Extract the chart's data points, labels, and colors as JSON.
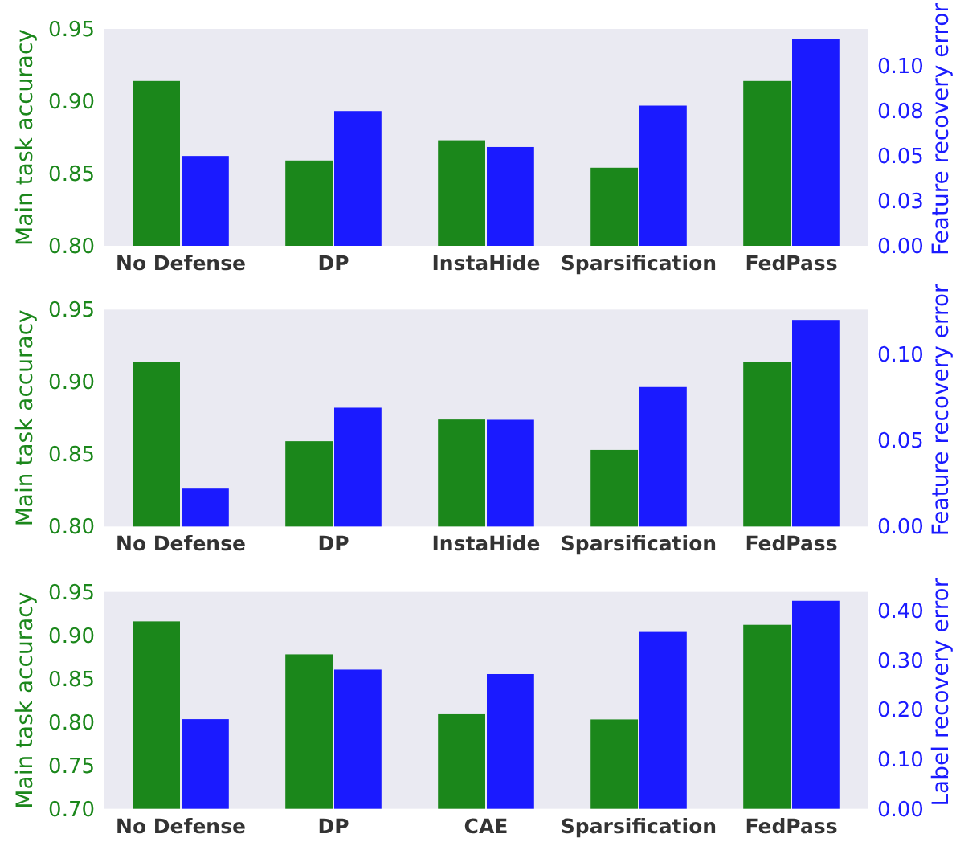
{
  "chart_data": [
    {
      "type": "bar",
      "ylabel": "Main task accuracy",
      "y2label": "Feature recovery error",
      "categories": [
        "No Defense",
        "DP",
        "InstaHide",
        "Sparsification",
        "FedPass"
      ],
      "series": [
        {
          "color": "#1b871b",
          "values": [
            0.914,
            0.859,
            0.873,
            0.854,
            0.914
          ]
        },
        {
          "color": "#1a1aff",
          "axis": "y2",
          "values": [
            0.05,
            0.075,
            0.055,
            0.078,
            0.115
          ]
        }
      ],
      "ylim": [
        0.8,
        0.95
      ],
      "yticks": [
        {
          "value": 0.8,
          "label": "0.80"
        },
        {
          "value": 0.85,
          "label": "0.85"
        },
        {
          "value": 0.9,
          "label": "0.90"
        },
        {
          "value": 0.95,
          "label": "0.95"
        }
      ],
      "y2lim": [
        0,
        0.1207
      ],
      "y2ticks": [
        {
          "value": 0,
          "label": "0.00"
        },
        {
          "value": 0.025,
          "label": "0.03"
        },
        {
          "value": 0.05,
          "label": "0.05"
        },
        {
          "value": 0.075,
          "label": "0.08"
        },
        {
          "value": 0.1,
          "label": "0.10"
        }
      ],
      "grid": false
    },
    {
      "type": "bar",
      "ylabel": "Main task accuracy",
      "y2label": "Feature recovery error",
      "categories": [
        "No Defense",
        "DP",
        "InstaHide",
        "Sparsification",
        "FedPass"
      ],
      "series": [
        {
          "color": "#1b871b",
          "values": [
            0.914,
            0.859,
            0.874,
            0.853,
            0.914
          ]
        },
        {
          "color": "#1a1aff",
          "axis": "y2",
          "values": [
            0.022,
            0.069,
            0.062,
            0.081,
            0.12
          ]
        }
      ],
      "ylim": [
        0.8,
        0.95
      ],
      "yticks": [
        {
          "value": 0.8,
          "label": "0.80"
        },
        {
          "value": 0.85,
          "label": "0.85"
        },
        {
          "value": 0.9,
          "label": "0.90"
        },
        {
          "value": 0.95,
          "label": "0.95"
        }
      ],
      "y2lim": [
        0,
        0.126
      ],
      "y2ticks": [
        {
          "value": 0,
          "label": "0.00"
        },
        {
          "value": 0.05,
          "label": "0.05"
        },
        {
          "value": 0.1,
          "label": "0.10"
        }
      ],
      "grid": false
    },
    {
      "type": "bar",
      "ylabel": "Main task accuracy",
      "y2label": "Label recovery error",
      "categories": [
        "No Defense",
        "DP",
        "CAE",
        "Sparsification",
        "FedPass"
      ],
      "series": [
        {
          "color": "#1b871b",
          "values": [
            0.916,
            0.878,
            0.809,
            0.803,
            0.912
          ]
        },
        {
          "color": "#1a1aff",
          "axis": "y2",
          "values": [
            0.181,
            0.281,
            0.272,
            0.357,
            0.42
          ]
        }
      ],
      "ylim": [
        0.7,
        0.95
      ],
      "yticks": [
        {
          "value": 0.7,
          "label": "0.70"
        },
        {
          "value": 0.75,
          "label": "0.75"
        },
        {
          "value": 0.8,
          "label": "0.80"
        },
        {
          "value": 0.85,
          "label": "0.85"
        },
        {
          "value": 0.9,
          "label": "0.90"
        },
        {
          "value": 0.95,
          "label": "0.95"
        }
      ],
      "y2lim": [
        0,
        0.438
      ],
      "y2ticks": [
        {
          "value": 0,
          "label": "0.00"
        },
        {
          "value": 0.1,
          "label": "0.10"
        },
        {
          "value": 0.2,
          "label": "0.20"
        },
        {
          "value": 0.3,
          "label": "0.30"
        },
        {
          "value": 0.4,
          "label": "0.40"
        }
      ],
      "grid": false
    }
  ]
}
